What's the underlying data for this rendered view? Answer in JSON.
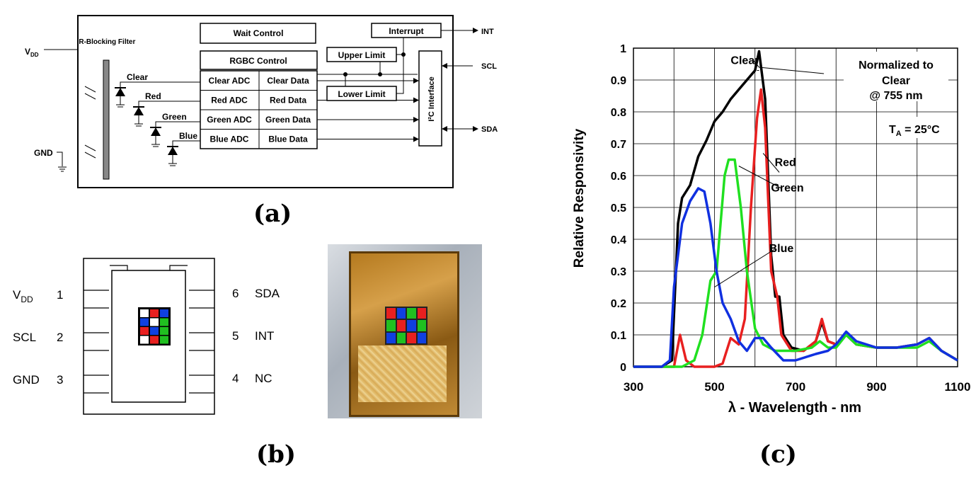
{
  "panel_a": {
    "caption": "(a)",
    "blocks": {
      "wait": "Wait Control",
      "interrupt": "Interrupt",
      "rgbc": "RGBC Control",
      "upper": "Upper Limit",
      "lower": "Lower Limit",
      "i2c": "I²C Interface",
      "filter": "IR-Blocking Filter",
      "adc": [
        "Clear ADC",
        "Red ADC",
        "Green ADC",
        "Blue ADC"
      ],
      "data": [
        "Clear Data",
        "Red Data",
        "Green Data",
        "Blue Data"
      ],
      "diodes": [
        "Clear",
        "Red",
        "Green",
        "Blue"
      ]
    },
    "pins": {
      "vdd": "V",
      "vdd_sub": "DD",
      "gnd": "GND",
      "int": "INT",
      "scl": "SCL",
      "sda": "SDA"
    }
  },
  "panel_b": {
    "caption": "(b)",
    "left_pins": [
      {
        "name": "V",
        "sub": "DD",
        "num": "1"
      },
      {
        "name": "SCL",
        "sub": "",
        "num": "2"
      },
      {
        "name": "GND",
        "sub": "",
        "num": "3"
      }
    ],
    "right_pins": [
      {
        "name": "SDA",
        "num": "6"
      },
      {
        "name": "INT",
        "num": "5"
      },
      {
        "name": "NC",
        "num": "4"
      }
    ],
    "filter_grid": [
      "#ffffff",
      "#e82020",
      "#1040e0",
      "#1040e0",
      "#ffffff",
      "#20c020",
      "#e82020",
      "#1040e0",
      "#20c020",
      "#ffffff",
      "#e82020",
      "#20c020"
    ]
  },
  "panel_c": {
    "caption": "(c)"
  },
  "chart_data": {
    "type": "line",
    "xlabel": "λ - Wavelength - nm",
    "ylabel": "Relative Responsivity",
    "xlim": [
      300,
      1100
    ],
    "ylim": [
      0,
      1
    ],
    "x_ticks": [
      "300",
      "500",
      "700",
      "900",
      "1100"
    ],
    "y_ticks": [
      "0",
      "0.1",
      "0.2",
      "0.3",
      "0.4",
      "0.5",
      "0.6",
      "0.7",
      "0.8",
      "0.9",
      "1"
    ],
    "grid": true,
    "annotations": {
      "norm_line1": "Normalized to",
      "norm_line2": "Clear",
      "norm_line3": "@ 755 nm",
      "temp": "T",
      "temp_sub": "A",
      "temp_val": " = 25°C"
    },
    "series": [
      {
        "name": "Clear",
        "color": "#000000",
        "points": [
          [
            300,
            0
          ],
          [
            370,
            0
          ],
          [
            395,
            0.02
          ],
          [
            410,
            0.45
          ],
          [
            420,
            0.53
          ],
          [
            440,
            0.57
          ],
          [
            460,
            0.66
          ],
          [
            480,
            0.71
          ],
          [
            500,
            0.77
          ],
          [
            520,
            0.8
          ],
          [
            540,
            0.84
          ],
          [
            560,
            0.87
          ],
          [
            580,
            0.9
          ],
          [
            600,
            0.93
          ],
          [
            610,
            0.99
          ],
          [
            625,
            0.84
          ],
          [
            640,
            0.35
          ],
          [
            650,
            0.22
          ],
          [
            660,
            0.22
          ],
          [
            670,
            0.1
          ],
          [
            690,
            0.06
          ],
          [
            720,
            0.05
          ],
          [
            750,
            0.08
          ],
          [
            765,
            0.14
          ],
          [
            780,
            0.08
          ],
          [
            800,
            0.07
          ],
          [
            825,
            0.1
          ],
          [
            850,
            0.07
          ],
          [
            900,
            0.06
          ],
          [
            950,
            0.06
          ],
          [
            1000,
            0.07
          ],
          [
            1030,
            0.09
          ],
          [
            1060,
            0.05
          ],
          [
            1100,
            0.02
          ]
        ]
      },
      {
        "name": "Red",
        "color": "#e82020",
        "points": [
          [
            300,
            0
          ],
          [
            400,
            0
          ],
          [
            415,
            0.1
          ],
          [
            430,
            0.02
          ],
          [
            450,
            0
          ],
          [
            500,
            0
          ],
          [
            520,
            0.01
          ],
          [
            540,
            0.09
          ],
          [
            560,
            0.07
          ],
          [
            575,
            0.15
          ],
          [
            590,
            0.5
          ],
          [
            605,
            0.78
          ],
          [
            615,
            0.87
          ],
          [
            625,
            0.75
          ],
          [
            640,
            0.3
          ],
          [
            655,
            0.22
          ],
          [
            665,
            0.1
          ],
          [
            690,
            0.05
          ],
          [
            720,
            0.05
          ],
          [
            750,
            0.08
          ],
          [
            765,
            0.15
          ],
          [
            780,
            0.08
          ],
          [
            800,
            0.07
          ],
          [
            825,
            0.1
          ],
          [
            850,
            0.07
          ],
          [
            900,
            0.06
          ],
          [
            950,
            0.06
          ],
          [
            1000,
            0.07
          ],
          [
            1030,
            0.09
          ],
          [
            1060,
            0.05
          ],
          [
            1100,
            0.02
          ]
        ]
      },
      {
        "name": "Green",
        "color": "#20e020",
        "points": [
          [
            300,
            0
          ],
          [
            420,
            0
          ],
          [
            450,
            0.02
          ],
          [
            470,
            0.1
          ],
          [
            490,
            0.27
          ],
          [
            505,
            0.3
          ],
          [
            515,
            0.45
          ],
          [
            525,
            0.6
          ],
          [
            535,
            0.65
          ],
          [
            550,
            0.65
          ],
          [
            565,
            0.5
          ],
          [
            580,
            0.3
          ],
          [
            600,
            0.12
          ],
          [
            620,
            0.07
          ],
          [
            650,
            0.05
          ],
          [
            700,
            0.05
          ],
          [
            740,
            0.06
          ],
          [
            760,
            0.08
          ],
          [
            780,
            0.06
          ],
          [
            800,
            0.06
          ],
          [
            825,
            0.1
          ],
          [
            850,
            0.07
          ],
          [
            900,
            0.06
          ],
          [
            950,
            0.06
          ],
          [
            1000,
            0.06
          ],
          [
            1030,
            0.08
          ],
          [
            1060,
            0.05
          ],
          [
            1100,
            0.02
          ]
        ]
      },
      {
        "name": "Blue",
        "color": "#1030e0",
        "points": [
          [
            300,
            0
          ],
          [
            370,
            0
          ],
          [
            390,
            0.02
          ],
          [
            400,
            0.25
          ],
          [
            420,
            0.45
          ],
          [
            440,
            0.52
          ],
          [
            460,
            0.56
          ],
          [
            475,
            0.55
          ],
          [
            490,
            0.45
          ],
          [
            505,
            0.3
          ],
          [
            520,
            0.2
          ],
          [
            540,
            0.15
          ],
          [
            560,
            0.08
          ],
          [
            580,
            0.05
          ],
          [
            600,
            0.09
          ],
          [
            620,
            0.09
          ],
          [
            640,
            0.06
          ],
          [
            655,
            0.04
          ],
          [
            670,
            0.02
          ],
          [
            700,
            0.02
          ],
          [
            750,
            0.04
          ],
          [
            780,
            0.05
          ],
          [
            800,
            0.07
          ],
          [
            825,
            0.11
          ],
          [
            850,
            0.08
          ],
          [
            900,
            0.06
          ],
          [
            950,
            0.06
          ],
          [
            1000,
            0.07
          ],
          [
            1030,
            0.09
          ],
          [
            1060,
            0.05
          ],
          [
            1100,
            0.02
          ]
        ]
      }
    ],
    "labels": [
      {
        "text": "Clear",
        "x": 575,
        "y": 0.95
      },
      {
        "text": "Red",
        "x": 675,
        "y": 0.63
      },
      {
        "text": "Green",
        "x": 680,
        "y": 0.55
      },
      {
        "text": "Blue",
        "x": 665,
        "y": 0.36
      }
    ]
  }
}
